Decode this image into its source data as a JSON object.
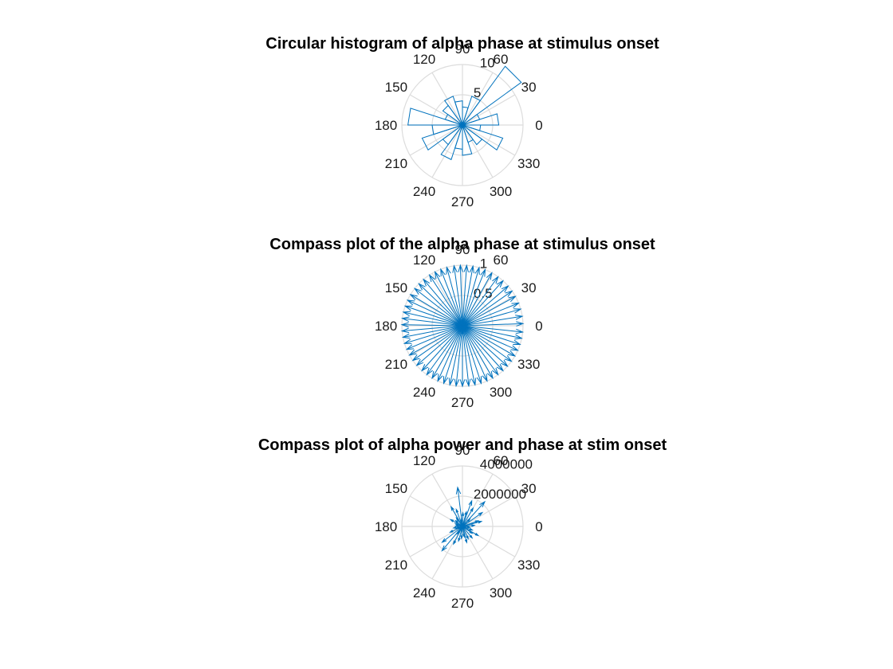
{
  "colors": {
    "series": "#0072bd",
    "grid": "#dcdcdc",
    "text": "#1a1a1a"
  },
  "chart_data": [
    {
      "type": "polar-histogram",
      "title": "Circular histogram of alpha phase at stimulus onset",
      "angle_tick_labels": [
        "0",
        "30",
        "60",
        "90",
        "120",
        "150",
        "180",
        "210",
        "240",
        "270",
        "300",
        "330"
      ],
      "radial_tick_labels": [
        "5",
        "10"
      ],
      "rlim": [
        0,
        10
      ],
      "grid": true,
      "bin_edges_deg": [
        0,
        18,
        36,
        54,
        72,
        90,
        108,
        126,
        144,
        162,
        180,
        198,
        216,
        234,
        252,
        270,
        288,
        306,
        324,
        342,
        360
      ],
      "counts": [
        6,
        3,
        12,
        5,
        3,
        4,
        5,
        4,
        3,
        9,
        5,
        7,
        4,
        6,
        4,
        5,
        3,
        4,
        7,
        3
      ]
    },
    {
      "type": "compass",
      "title": "Compass plot of the alpha phase at stimulus onset",
      "angle_tick_labels": [
        "0",
        "30",
        "60",
        "90",
        "120",
        "150",
        "180",
        "210",
        "240",
        "270",
        "300",
        "330"
      ],
      "radial_tick_labels": [
        "0.5",
        "1"
      ],
      "rlim": [
        0,
        1
      ],
      "grid": true,
      "vectors": [
        {
          "deg": 2,
          "r": 1
        },
        {
          "deg": 9,
          "r": 1
        },
        {
          "deg": 16,
          "r": 1
        },
        {
          "deg": 22,
          "r": 1
        },
        {
          "deg": 29,
          "r": 1
        },
        {
          "deg": 35,
          "r": 1
        },
        {
          "deg": 41,
          "r": 1
        },
        {
          "deg": 48,
          "r": 1
        },
        {
          "deg": 54,
          "r": 1
        },
        {
          "deg": 61,
          "r": 1
        },
        {
          "deg": 68,
          "r": 1
        },
        {
          "deg": 74,
          "r": 1
        },
        {
          "deg": 80,
          "r": 1
        },
        {
          "deg": 86,
          "r": 1
        },
        {
          "deg": 92,
          "r": 1
        },
        {
          "deg": 98,
          "r": 1
        },
        {
          "deg": 105,
          "r": 1
        },
        {
          "deg": 111,
          "r": 1
        },
        {
          "deg": 117,
          "r": 1
        },
        {
          "deg": 123,
          "r": 1
        },
        {
          "deg": 130,
          "r": 1
        },
        {
          "deg": 136,
          "r": 1
        },
        {
          "deg": 142,
          "r": 1
        },
        {
          "deg": 149,
          "r": 1
        },
        {
          "deg": 155,
          "r": 1
        },
        {
          "deg": 161,
          "r": 1
        },
        {
          "deg": 167,
          "r": 1
        },
        {
          "deg": 173,
          "r": 1
        },
        {
          "deg": 179,
          "r": 1
        },
        {
          "deg": 185,
          "r": 1
        },
        {
          "deg": 191,
          "r": 1
        },
        {
          "deg": 197,
          "r": 1
        },
        {
          "deg": 203,
          "r": 1
        },
        {
          "deg": 209,
          "r": 1
        },
        {
          "deg": 215,
          "r": 1
        },
        {
          "deg": 221,
          "r": 1
        },
        {
          "deg": 228,
          "r": 1
        },
        {
          "deg": 234,
          "r": 1
        },
        {
          "deg": 240,
          "r": 1
        },
        {
          "deg": 246,
          "r": 1
        },
        {
          "deg": 252,
          "r": 1
        },
        {
          "deg": 258,
          "r": 1
        },
        {
          "deg": 264,
          "r": 1
        },
        {
          "deg": 270,
          "r": 1
        },
        {
          "deg": 276,
          "r": 1
        },
        {
          "deg": 282,
          "r": 1
        },
        {
          "deg": 288,
          "r": 1
        },
        {
          "deg": 294,
          "r": 1
        },
        {
          "deg": 300,
          "r": 1
        },
        {
          "deg": 306,
          "r": 1
        },
        {
          "deg": 312,
          "r": 1
        },
        {
          "deg": 318,
          "r": 1
        },
        {
          "deg": 324,
          "r": 1
        },
        {
          "deg": 330,
          "r": 1
        },
        {
          "deg": 336,
          "r": 1
        },
        {
          "deg": 342,
          "r": 1
        },
        {
          "deg": 348,
          "r": 1
        },
        {
          "deg": 354,
          "r": 1
        }
      ]
    },
    {
      "type": "compass",
      "title": "Compass plot of alpha power and phase at stim onset",
      "angle_tick_labels": [
        "0",
        "30",
        "60",
        "90",
        "120",
        "150",
        "180",
        "210",
        "240",
        "270",
        "300",
        "330"
      ],
      "radial_tick_labels": [
        "2000000",
        "4000000"
      ],
      "rlim": [
        0,
        4000000
      ],
      "grid": true,
      "vectors": [
        {
          "deg": 5,
          "r": 800000
        },
        {
          "deg": 20,
          "r": 1100000
        },
        {
          "deg": 35,
          "r": 1600000
        },
        {
          "deg": 48,
          "r": 2200000
        },
        {
          "deg": 60,
          "r": 1400000
        },
        {
          "deg": 75,
          "r": 1000000
        },
        {
          "deg": 88,
          "r": 900000
        },
        {
          "deg": 97,
          "r": 2600000
        },
        {
          "deg": 110,
          "r": 1200000
        },
        {
          "deg": 125,
          "r": 700000
        },
        {
          "deg": 140,
          "r": 600000
        },
        {
          "deg": 160,
          "r": 500000
        },
        {
          "deg": 175,
          "r": 450000
        },
        {
          "deg": 190,
          "r": 600000
        },
        {
          "deg": 205,
          "r": 900000
        },
        {
          "deg": 218,
          "r": 1700000
        },
        {
          "deg": 230,
          "r": 2100000
        },
        {
          "deg": 243,
          "r": 1300000
        },
        {
          "deg": 255,
          "r": 1000000
        },
        {
          "deg": 265,
          "r": 800000
        },
        {
          "deg": 280,
          "r": 700000
        },
        {
          "deg": 295,
          "r": 900000
        },
        {
          "deg": 310,
          "r": 1000000
        },
        {
          "deg": 325,
          "r": 800000
        },
        {
          "deg": 340,
          "r": 700000
        },
        {
          "deg": 352,
          "r": 500000
        },
        {
          "deg": 100,
          "r": 500000
        },
        {
          "deg": 45,
          "r": 700000
        },
        {
          "deg": 200,
          "r": 400000
        },
        {
          "deg": 330,
          "r": 1200000
        },
        {
          "deg": 15,
          "r": 1300000
        },
        {
          "deg": 70,
          "r": 1800000
        },
        {
          "deg": 235,
          "r": 600000
        },
        {
          "deg": 285,
          "r": 1100000
        },
        {
          "deg": 150,
          "r": 900000
        },
        {
          "deg": 120,
          "r": 1500000
        }
      ]
    }
  ]
}
